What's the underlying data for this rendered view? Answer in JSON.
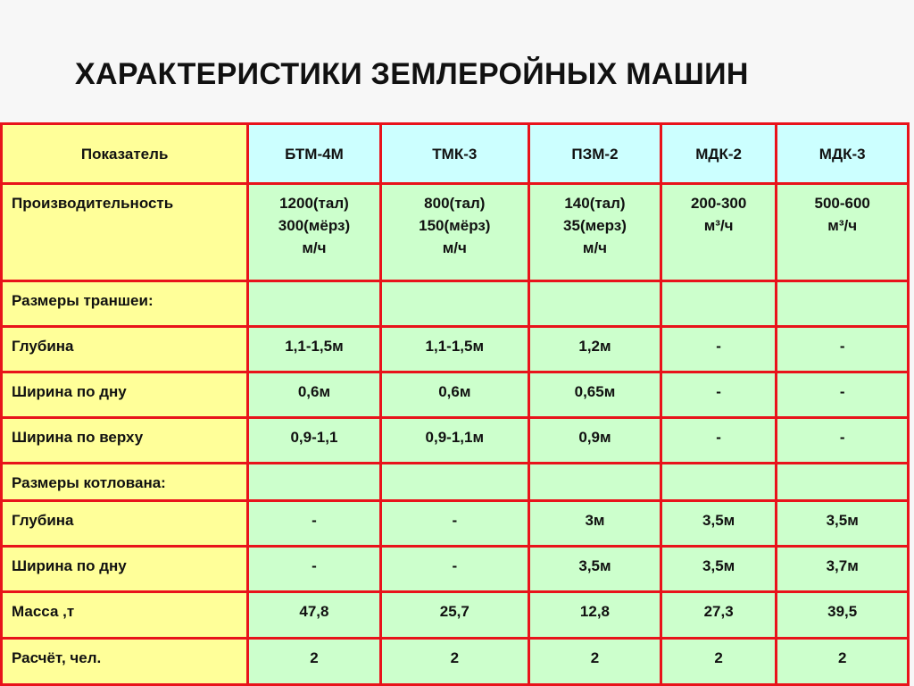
{
  "title": "ХАРАКТЕРИСТИКИ ЗЕМЛЕРОЙНЫХ МАШИН",
  "colors": {
    "label_bg": "#ffff99",
    "header_bg": "#ccffff",
    "value_bg": "#ccffcc",
    "border": "#e8131b"
  },
  "table": {
    "header": [
      "Показатель",
      "БТМ-4М",
      "ТМК-3",
      "ПЗМ-2",
      "МДК-2",
      "МДК-3"
    ],
    "rows": [
      {
        "label": "Производительность",
        "cells": [
          [
            "1200(тал)",
            "300(мёрз)",
            "м/ч"
          ],
          [
            "800(тал)",
            "150(мёрз)",
            "м/ч"
          ],
          [
            "140(тал)",
            "35(мерз)",
            "м/ч"
          ],
          [
            "200-300",
            "м³/ч"
          ],
          [
            "500-600",
            "м³/ч"
          ]
        ]
      },
      {
        "label": "Размеры траншеи:",
        "cells": [
          [],
          [],
          [],
          [],
          []
        ]
      },
      {
        "label": "Глубина",
        "cells": [
          [
            "1,1-1,5м"
          ],
          [
            "1,1-1,5м"
          ],
          [
            "1,2м"
          ],
          [
            "-"
          ],
          [
            "-"
          ]
        ]
      },
      {
        "label": "Ширина по дну",
        "cells": [
          [
            "0,6м"
          ],
          [
            "0,6м"
          ],
          [
            "0,65м"
          ],
          [
            "-"
          ],
          [
            "-"
          ]
        ]
      },
      {
        "label": "Ширина по верху",
        "cells": [
          [
            "0,9-1,1"
          ],
          [
            "0,9-1,1м"
          ],
          [
            "0,9м"
          ],
          [
            "-"
          ],
          [
            "-"
          ]
        ]
      },
      {
        "label": "Размеры котлована:",
        "cells": [
          [],
          [],
          [],
          [],
          []
        ]
      },
      {
        "label": "Глубина",
        "cells": [
          [
            "-"
          ],
          [
            "-"
          ],
          [
            "3м"
          ],
          [
            "3,5м"
          ],
          [
            "3,5м"
          ]
        ]
      },
      {
        "label": "Ширина по дну",
        "cells": [
          [
            "-"
          ],
          [
            "-"
          ],
          [
            "3,5м"
          ],
          [
            "3,5м"
          ],
          [
            "3,7м"
          ]
        ]
      },
      {
        "label": "Масса ,т",
        "cells": [
          [
            "47,8"
          ],
          [
            "25,7"
          ],
          [
            "12,8"
          ],
          [
            "27,3"
          ],
          [
            "39,5"
          ]
        ]
      },
      {
        "label": "Расчёт, чел.",
        "cells": [
          [
            "2"
          ],
          [
            "2"
          ],
          [
            "2"
          ],
          [
            "2"
          ],
          [
            "2"
          ]
        ]
      }
    ]
  }
}
